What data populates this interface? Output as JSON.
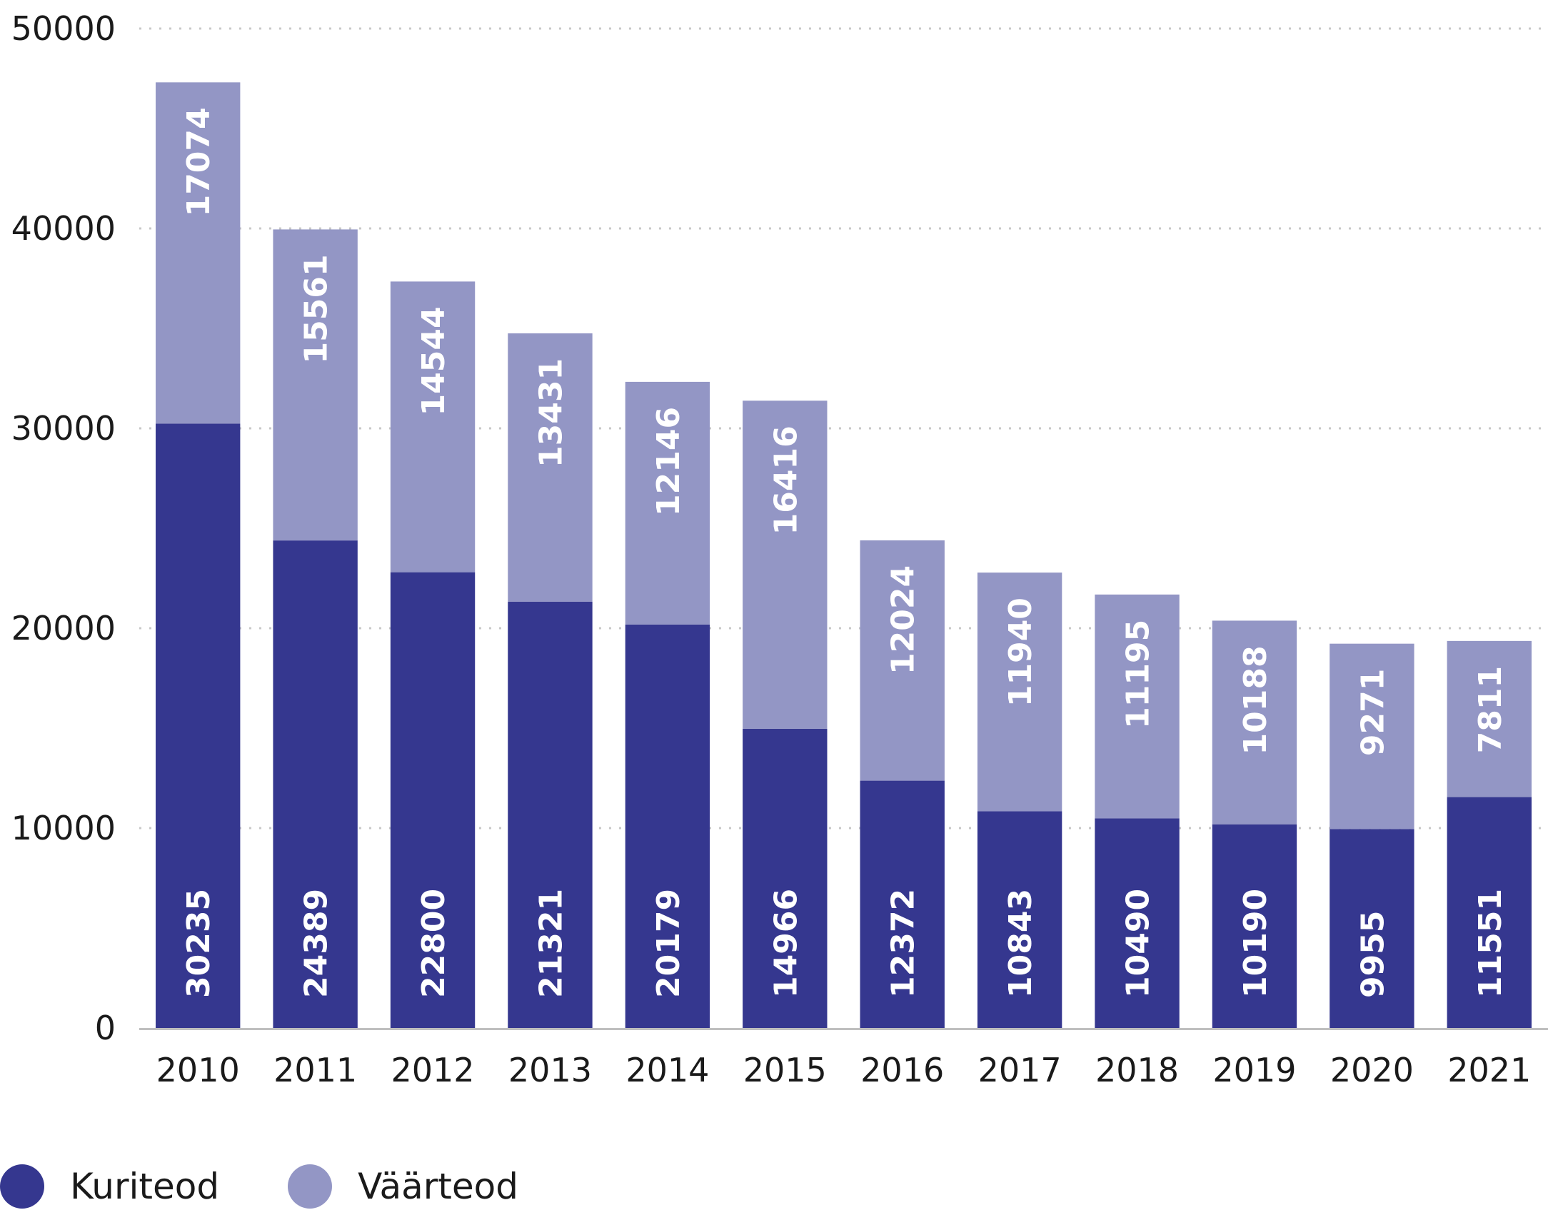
{
  "colors": {
    "kuriteod": "#35378f",
    "vaarteod": "#9396c5",
    "grid": "#c8c8c8",
    "axis": "#bfbfbf"
  },
  "legend": {
    "items": [
      {
        "label": "Kuriteod",
        "color": "#35378f"
      },
      {
        "label": "Väärteod",
        "color": "#9396c5"
      }
    ]
  },
  "chart_data": {
    "type": "bar",
    "stacked": true,
    "title": "",
    "xlabel": "",
    "ylabel": "",
    "ylim": [
      0,
      50000
    ],
    "yticks": [
      0,
      10000,
      20000,
      30000,
      40000,
      50000
    ],
    "grid": true,
    "legend_position": "bottom-left",
    "categories": [
      "2010",
      "2011",
      "2012",
      "2013",
      "2014",
      "2015",
      "2016",
      "2017",
      "2018",
      "2019",
      "2020",
      "2021"
    ],
    "series": [
      {
        "name": "Kuriteod",
        "color": "#35378f",
        "values": [
          30235,
          24389,
          22800,
          21321,
          20179,
          14966,
          12372,
          10843,
          10490,
          10190,
          9955,
          11551
        ]
      },
      {
        "name": "Väärteod",
        "color": "#9396c5",
        "values": [
          17074,
          15561,
          14544,
          13431,
          12146,
          16416,
          12024,
          11940,
          11195,
          10188,
          9271,
          7811
        ]
      }
    ]
  }
}
